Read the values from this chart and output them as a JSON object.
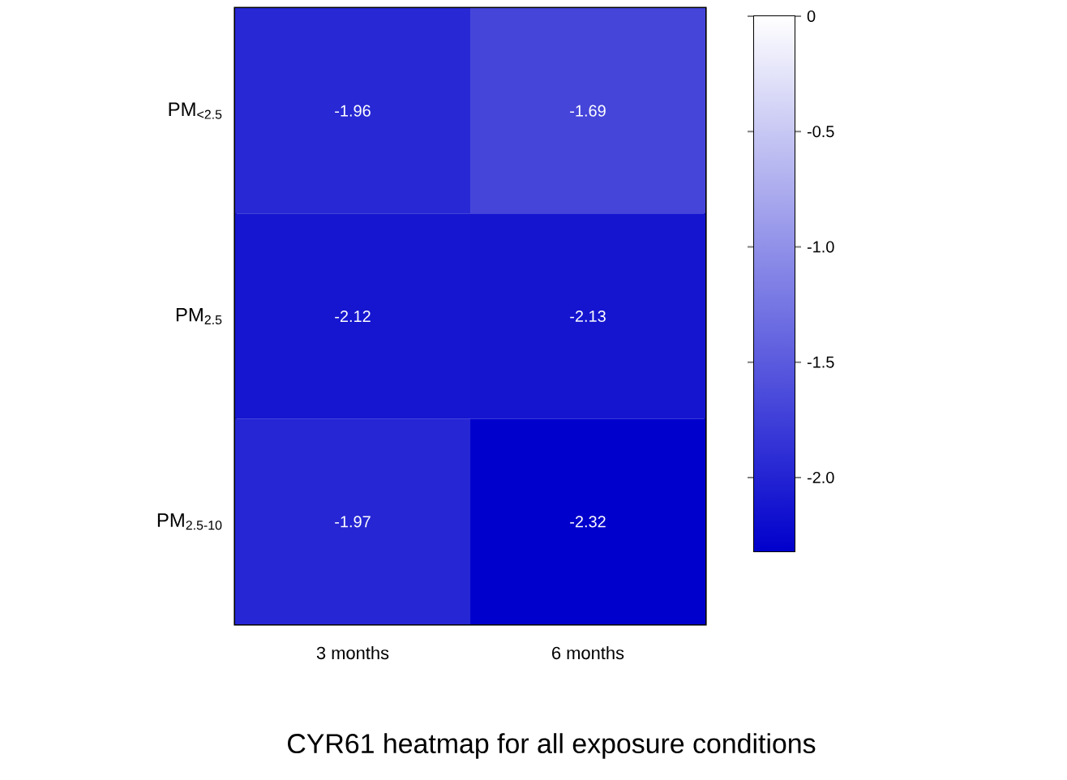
{
  "chart_data": {
    "type": "heatmap",
    "title": "CYR61 heatmap for all exposure conditions",
    "categories": [
      "3 months",
      "6 months"
    ],
    "y_categories": [
      "PM$_{<2.5}$",
      "PM$_{2.5}$",
      "PM$_{2.5-10}$"
    ],
    "cells": [
      [
        -1.96,
        -1.69
      ],
      [
        -2.12,
        -2.13
      ],
      [
        -1.97,
        -2.32
      ]
    ],
    "data_labels": true,
    "clim": [
      -2.32,
      0
    ],
    "cticks": [
      0,
      -0.5,
      {
        "value": -1.0,
        "label": "-1.0"
      },
      -1.5,
      {
        "value": -2.0,
        "label": "-2.0"
      }
    ]
  }
}
